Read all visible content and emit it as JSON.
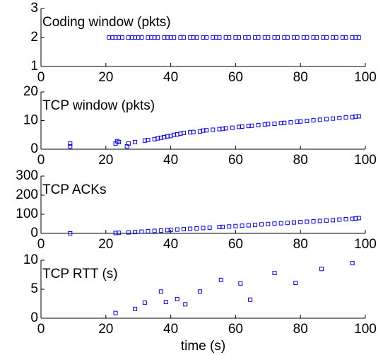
{
  "chart_data": [
    {
      "type": "scatter",
      "title": "Coding window (pkts)",
      "color": "#0000ff",
      "x": [
        21,
        22,
        23,
        24,
        25,
        27,
        28,
        29,
        30,
        31,
        33,
        34,
        35,
        36,
        38,
        39,
        40,
        41,
        43,
        44,
        46,
        47,
        48,
        50,
        51,
        53,
        54,
        55,
        57,
        58,
        60,
        61,
        63,
        64,
        66,
        67,
        69,
        70,
        72,
        73,
        75,
        76,
        78,
        79,
        81,
        82,
        84,
        85,
        87,
        88,
        90,
        91,
        93,
        94,
        96,
        97,
        98
      ],
      "values": [
        2,
        2,
        2,
        2,
        2,
        2,
        2,
        2,
        2,
        2,
        2,
        2,
        2,
        2,
        2,
        2,
        2,
        2,
        2,
        2,
        2,
        2,
        2,
        2,
        2,
        2,
        2,
        2,
        2,
        2,
        2,
        2,
        2,
        2,
        2,
        2,
        2,
        2,
        2,
        2,
        2,
        2,
        2,
        2,
        2,
        2,
        2,
        2,
        2,
        2,
        2,
        2,
        2,
        2,
        2,
        2,
        2
      ],
      "xlim": [
        0,
        100
      ],
      "xticks": [
        0,
        20,
        40,
        60,
        80,
        100
      ],
      "ylim": [
        1,
        3
      ],
      "yticks": [
        1,
        2,
        3
      ]
    },
    {
      "type": "scatter",
      "title": "TCP window (pkts)",
      "color": "#0000ff",
      "x": [
        9,
        9,
        23,
        23.5,
        24,
        26.5,
        27,
        29,
        32,
        33,
        35,
        36,
        37,
        38,
        39,
        40,
        41,
        42,
        43,
        44,
        46,
        47,
        49,
        50,
        51,
        53,
        55,
        56,
        57,
        59,
        61,
        62,
        64,
        65,
        67,
        69,
        70,
        72,
        74,
        75,
        77,
        79,
        80,
        82,
        84,
        86,
        88,
        90,
        92,
        94,
        96,
        97,
        98
      ],
      "values": [
        2,
        1,
        2,
        2.8,
        2.5,
        1,
        2,
        2.5,
        3,
        3.2,
        3.5,
        3.8,
        4,
        4.2,
        4.5,
        4.6,
        5,
        5.2,
        5.4,
        5.7,
        5.9,
        6,
        6.2,
        6.5,
        6.6,
        6.8,
        7,
        7.1,
        7.3,
        7.5,
        7.8,
        7.9,
        8.1,
        8.2,
        8.4,
        8.6,
        8.8,
        8.9,
        9.1,
        9.2,
        9.4,
        9.6,
        9.7,
        9.9,
        10.1,
        10.3,
        10.5,
        10.7,
        10.9,
        11.1,
        11.2,
        11.4,
        11.5
      ],
      "xlim": [
        0,
        100
      ],
      "xticks": [
        0,
        20,
        40,
        60,
        80,
        100
      ],
      "ylim": [
        0,
        20
      ],
      "yticks": [
        0,
        10,
        20
      ]
    },
    {
      "type": "scatter",
      "title": "TCP ACKs",
      "color": "#0000ff",
      "x": [
        9,
        23,
        24,
        27,
        29,
        31,
        33,
        35,
        37,
        39,
        40,
        42,
        44,
        46,
        48,
        50,
        52,
        55,
        56,
        58,
        60,
        62,
        64,
        66,
        68,
        70,
        72,
        74,
        76,
        78,
        80,
        82,
        84,
        86,
        88,
        90,
        92,
        94,
        96,
        97,
        98
      ],
      "values": [
        0,
        2,
        3,
        5,
        7,
        9,
        11,
        13,
        15,
        17,
        18,
        20,
        22,
        24,
        26,
        28,
        30,
        33,
        34,
        36,
        38,
        40,
        42,
        44,
        47,
        49,
        51,
        53,
        55,
        57,
        59,
        61,
        63,
        65,
        67,
        69,
        72,
        74,
        76,
        78,
        80
      ],
      "xlim": [
        0,
        100
      ],
      "xticks": [
        0,
        20,
        40,
        60,
        80,
        100
      ],
      "ylim": [
        0,
        300
      ],
      "yticks": [
        0,
        100,
        200,
        300
      ]
    },
    {
      "type": "scatter",
      "title": "TCP RTT (s)",
      "x_label": "time (s)",
      "color": "#0000ff",
      "x": [
        23,
        29,
        32,
        37,
        38.5,
        42,
        44.5,
        49,
        55.5,
        61.5,
        64.5,
        72,
        78.5,
        86.5,
        96
      ],
      "values": [
        0.9,
        1.6,
        2.7,
        4.6,
        2.8,
        3.3,
        2.4,
        4.6,
        6.6,
        6,
        3.2,
        7.8,
        6.1,
        8.5,
        9.5
      ],
      "xlim": [
        0,
        100
      ],
      "xticks": [
        0,
        20,
        40,
        60,
        80,
        100
      ],
      "ylim": [
        0,
        10
      ],
      "yticks": [
        0,
        5,
        10
      ]
    }
  ]
}
